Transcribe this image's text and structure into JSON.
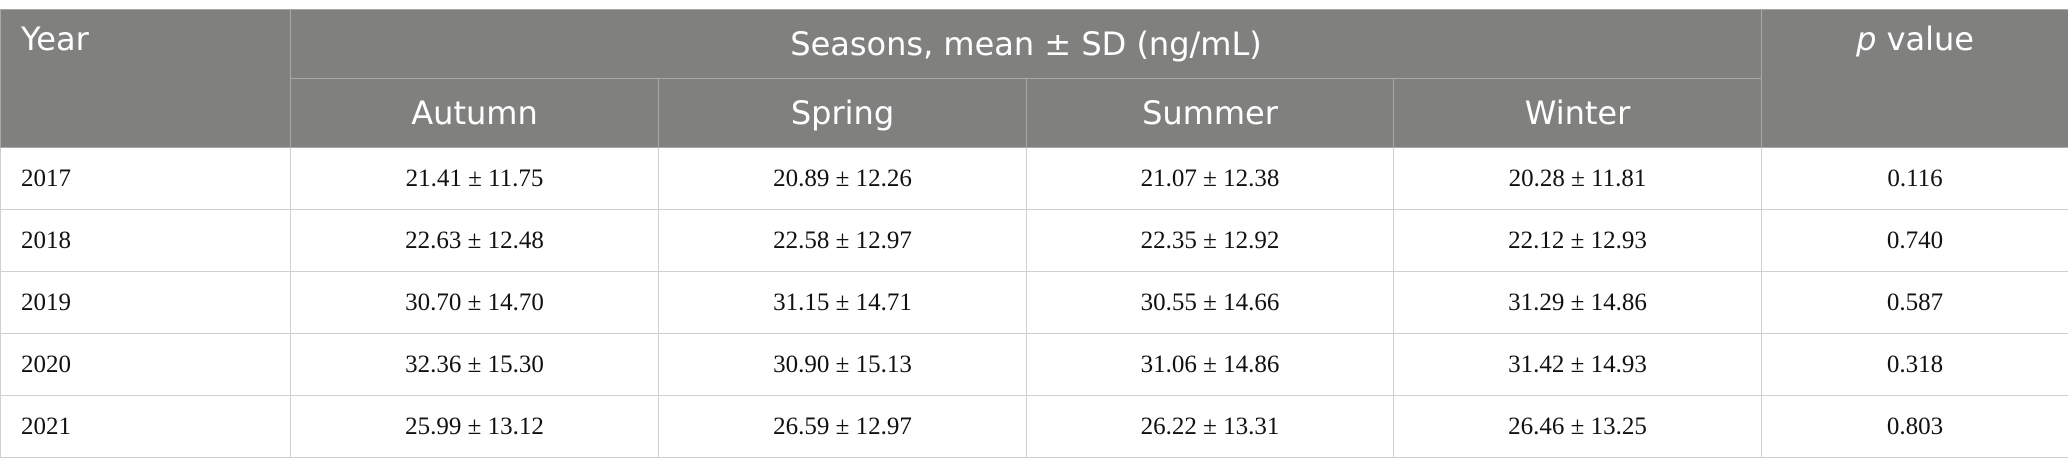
{
  "header": {
    "year": "Year",
    "group": "Seasons, mean ± SD (ng/mL)",
    "seasons": [
      "Autumn",
      "Spring",
      "Summer",
      "Winter"
    ],
    "p_value": {
      "symbol": "p",
      "text": "value"
    }
  },
  "table": {
    "rows": [
      [
        "2017",
        "21.41 ± 11.75",
        "20.89 ± 12.26",
        "21.07 ± 12.38",
        "20.28 ± 11.81",
        "0.116"
      ],
      [
        "2018",
        "22.63 ± 12.48",
        "22.58 ± 12.97",
        "22.35 ± 12.92",
        "22.12 ± 12.93",
        "0.740"
      ],
      [
        "2019",
        "30.70 ± 14.70",
        "31.15 ± 14.71",
        "30.55 ± 14.66",
        "31.29 ± 14.86",
        "0.587"
      ],
      [
        "2020",
        "32.36 ± 15.30",
        "30.90 ± 15.13",
        "31.06 ± 14.86",
        "31.42 ± 14.93",
        "0.318"
      ],
      [
        "2021",
        "25.99 ± 13.12",
        "26.59 ± 12.97",
        "26.22 ± 13.31",
        "26.46 ± 13.25",
        "0.803"
      ]
    ]
  }
}
